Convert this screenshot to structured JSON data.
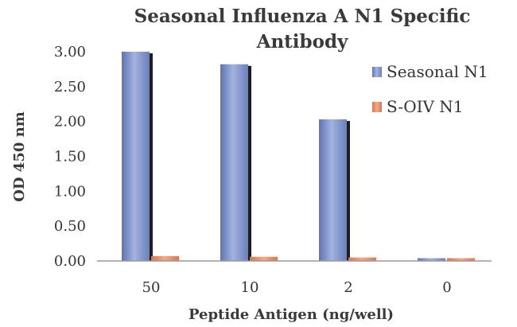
{
  "chart_data": {
    "type": "bar",
    "title_lines": [
      "Seasonal Influenza A N1 Specific",
      "Antibody"
    ],
    "xlabel": "Peptide Antigen (ng/well)",
    "ylabel": "OD 450 nm",
    "categories": [
      "50",
      "10",
      "2",
      "0"
    ],
    "ylim": [
      0,
      3.0
    ],
    "yticks": [
      "0.00",
      "0.50",
      "1.00",
      "1.50",
      "2.00",
      "2.50",
      "3.00"
    ],
    "grid": false,
    "legend_position": "right",
    "series": [
      {
        "name": "Seasonal N1",
        "values": [
          3.0,
          2.82,
          2.03,
          0.04
        ],
        "color": "#7f93c7"
      },
      {
        "name": "S-OIV N1",
        "values": [
          0.07,
          0.06,
          0.05,
          0.04
        ],
        "color": "#e58c66"
      }
    ]
  }
}
